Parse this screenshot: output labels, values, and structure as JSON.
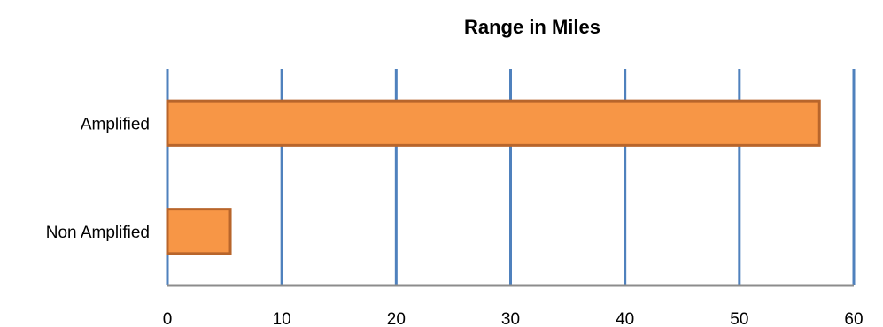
{
  "chart_data": {
    "type": "bar",
    "orientation": "horizontal",
    "title": "Range in Miles",
    "categories": [
      "Amplified",
      "Non Amplified"
    ],
    "values": [
      57,
      5.5
    ],
    "xlim": [
      0,
      60
    ],
    "xticks": [
      0,
      10,
      20,
      30,
      40,
      50,
      60
    ],
    "grid": "vertical",
    "legend": "none",
    "colors": {
      "bar_fill": "#f79646",
      "bar_stroke": "#b8652b",
      "grid": "#4f81bd",
      "axis": "#8c8c8c"
    }
  }
}
